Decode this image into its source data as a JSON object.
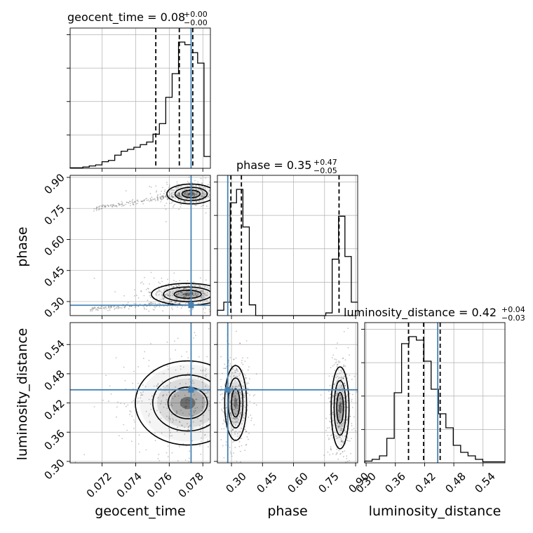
{
  "colors": {
    "truth": "#4682b4",
    "line": "#000000",
    "grid": "#b0b0b0",
    "scatter": "#555555"
  },
  "titles": {
    "geocent_time": {
      "name": "geocent_time",
      "value": "0.08",
      "plus": "+0.00",
      "minus": "−0.00"
    },
    "phase": {
      "name": "phase",
      "value": "0.35",
      "plus": "+0.47",
      "minus": "−0.05"
    },
    "luminosity_distance": {
      "name": "luminosity_distance",
      "value": "0.42",
      "plus": "+0.04",
      "minus": "−0.03"
    }
  },
  "labels": {
    "geocent_time": "geocent_time",
    "phase": "phase",
    "luminosity_distance": "luminosity_distance"
  },
  "ticklabels": {
    "geocent_time": [
      "0.072",
      "0.074",
      "0.076",
      "0.078"
    ],
    "phase": [
      "0.30",
      "0.45",
      "0.60",
      "0.75",
      "0.90"
    ],
    "luminosity_distance": [
      "0.30",
      "0.36",
      "0.42",
      "0.48",
      "0.54"
    ]
  },
  "chart_data": {
    "type": "corner",
    "parameters": [
      "geocent_time",
      "phase",
      "luminosity_distance"
    ],
    "ranges": {
      "geocent_time": [
        0.0701,
        0.07845
      ],
      "phase": [
        0.232,
        0.91
      ],
      "luminosity_distance": [
        0.297,
        0.585
      ]
    },
    "ticks": {
      "geocent_time": [
        0.072,
        0.074,
        0.076,
        0.078
      ],
      "phase": [
        0.3,
        0.45,
        0.6,
        0.75,
        0.9
      ],
      "luminosity_distance": [
        0.3,
        0.36,
        0.42,
        0.48,
        0.54
      ]
    },
    "truths": {
      "geocent_time": 0.0773,
      "phase": 0.282,
      "luminosity_distance": 0.447
    },
    "quantiles": {
      "geocent_time": [
        0.0752,
        0.0766,
        0.0774
      ],
      "phase": [
        0.297,
        0.348,
        0.82
      ],
      "luminosity_distance": [
        0.387,
        0.418,
        0.452
      ]
    },
    "histograms": {
      "geocent_time": [
        0.2,
        0.2,
        0.5,
        0.9,
        1.3,
        2.5,
        3.0,
        5.0,
        6.5,
        7.2,
        8.0,
        9.0,
        10.0,
        13.0,
        17.0,
        27.0,
        36.0,
        48.0,
        47.0,
        44.0,
        40.0,
        4.5
      ],
      "phase": [
        2,
        5,
        42,
        47,
        33,
        4,
        0,
        0,
        0,
        0,
        0,
        0,
        0,
        0,
        0,
        0,
        0,
        1,
        21,
        37,
        22,
        5
      ],
      "luminosity_distance": [
        0.5,
        1,
        2,
        7,
        20,
        34,
        36,
        35,
        29,
        21,
        14,
        10,
        5,
        3,
        2,
        1,
        0.3,
        0.3,
        0.3
      ]
    },
    "density_modes": {
      "geocent_time_phase": [
        {
          "x": 0.0773,
          "y": 0.82,
          "sx": 0.0006,
          "sy": 0.02
        },
        {
          "x": 0.0771,
          "y": 0.335,
          "sx": 0.0009,
          "sy": 0.022
        }
      ],
      "geocent_time_luminosity_distance": [
        {
          "x": 0.0771,
          "y": 0.42,
          "sx": 0.0013,
          "sy": 0.036
        }
      ],
      "phase_luminosity_distance": [
        {
          "x": 0.32,
          "y": 0.42,
          "sx": 0.022,
          "sy": 0.032
        },
        {
          "x": 0.825,
          "y": 0.41,
          "sx": 0.018,
          "sy": 0.035
        }
      ]
    }
  }
}
